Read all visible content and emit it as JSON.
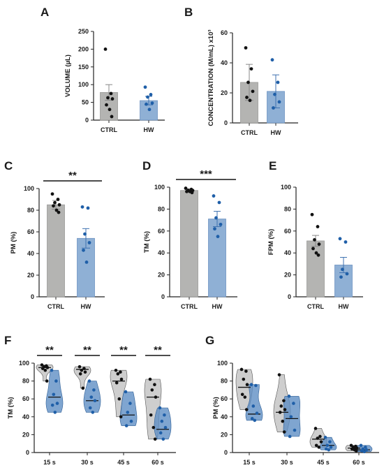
{
  "colors": {
    "ctrl": "#b4b4b2",
    "hw": "#8fb0d5",
    "ctrl_dot": "#111111",
    "hw_dot": "#1f5fa8",
    "violin_ctrl": "#bdbdbd",
    "violin_hw": "#5f8fc4"
  },
  "chart_data": [
    {
      "type": "bar",
      "panel": "A",
      "categories": [
        "CTRL",
        "HW"
      ],
      "ylabel": "VOLUME (µL)",
      "ylim": [
        0,
        250
      ],
      "yticks": [
        0,
        50,
        100,
        150,
        200,
        250
      ],
      "means": [
        78,
        55
      ],
      "errors": [
        22,
        12
      ],
      "points": [
        [
          200,
          75,
          63,
          60,
          43,
          30,
          10
        ],
        [
          93,
          72,
          65,
          48,
          45,
          30
        ]
      ]
    },
    {
      "type": "bar",
      "panel": "B",
      "categories": [
        "CTRL",
        "HW"
      ],
      "ylabel": "CONCENTRATION (M/mL) x10³",
      "ylim": [
        0,
        60
      ],
      "yticks": [
        0,
        20,
        40,
        60
      ],
      "means": [
        27,
        21
      ],
      "errors": [
        12,
        11
      ],
      "points": [
        [
          50,
          36,
          27,
          21,
          17,
          15
        ],
        [
          42,
          27,
          19,
          14,
          10
        ]
      ]
    },
    {
      "type": "bar",
      "panel": "C",
      "categories": [
        "CTRL",
        "HW"
      ],
      "ylabel": "PM (%)",
      "ylim": [
        0,
        100
      ],
      "yticks": [
        0,
        20,
        40,
        60,
        80,
        100
      ],
      "means": [
        85,
        54
      ],
      "errors": [
        4,
        9
      ],
      "points": [
        [
          95,
          90,
          87,
          85,
          84,
          80,
          78
        ],
        [
          83,
          82,
          58,
          50,
          43,
          32
        ]
      ],
      "significance": "**"
    },
    {
      "type": "bar",
      "panel": "D",
      "categories": [
        "CTRL",
        "HW"
      ],
      "ylabel": "TM (%)",
      "ylim": [
        0,
        100
      ],
      "yticks": [
        0,
        20,
        40,
        60,
        80,
        100
      ],
      "means": [
        97,
        71
      ],
      "errors": [
        1.5,
        7
      ],
      "points": [
        [
          99,
          98,
          97,
          97,
          96,
          96,
          95
        ],
        [
          92,
          86,
          72,
          66,
          62,
          55
        ]
      ],
      "significance": "***"
    },
    {
      "type": "bar",
      "panel": "E",
      "categories": [
        "CTRL",
        "HW"
      ],
      "ylabel": "FPM (%)",
      "ylim": [
        0,
        100
      ],
      "yticks": [
        0,
        20,
        40,
        60,
        80,
        100
      ],
      "means": [
        51,
        29
      ],
      "errors": [
        5,
        7
      ],
      "points": [
        [
          75,
          64,
          52,
          48,
          44,
          40,
          38
        ],
        [
          53,
          50,
          25,
          21,
          18
        ]
      ]
    },
    {
      "type": "violin",
      "panel": "F",
      "categories": [
        "15 s",
        "30 s",
        "45 s",
        "60 s"
      ],
      "ylabel": "TM (%)",
      "ylim": [
        0,
        100
      ],
      "yticks": [
        0,
        20,
        40,
        60,
        80,
        100
      ],
      "significance": [
        "**",
        "**",
        "**",
        "**"
      ],
      "groups": [
        {
          "ctrl": [
            98,
            97,
            96,
            95,
            94,
            92,
            80
          ],
          "hw": [
            92,
            80,
            65,
            55,
            53,
            45
          ]
        },
        {
          "ctrl": [
            96,
            94,
            92,
            90,
            88,
            72
          ],
          "hw": [
            80,
            70,
            62,
            58,
            50,
            45
          ]
        },
        {
          "ctrl": [
            92,
            90,
            88,
            82,
            78,
            60,
            40
          ],
          "hw": [
            68,
            55,
            45,
            35,
            30
          ]
        },
        {
          "ctrl": [
            82,
            76,
            70,
            62,
            42,
            28,
            15
          ],
          "hw": [
            50,
            42,
            35,
            28,
            22,
            15
          ]
        }
      ],
      "medians": [
        [
          95,
          62
        ],
        [
          93,
          58
        ],
        [
          80,
          42
        ],
        [
          62,
          26
        ]
      ]
    },
    {
      "type": "violin",
      "panel": "G",
      "categories": [
        "15 s",
        "30 s",
        "45 s",
        "60 s"
      ],
      "ylabel": "PM (%)",
      "ylim": [
        0,
        100
      ],
      "yticks": [
        0,
        20,
        40,
        60,
        80,
        100
      ],
      "groups": [
        {
          "ctrl": [
            93,
            91,
            82,
            76,
            65,
            62,
            48
          ],
          "hw": [
            76,
            75,
            52,
            44,
            38,
            36
          ]
        },
        {
          "ctrl": [
            87,
            58,
            52,
            48,
            45,
            35,
            23
          ],
          "hw": [
            63,
            55,
            40,
            25,
            18
          ]
        },
        {
          "ctrl": [
            27,
            18,
            16,
            12,
            8,
            6
          ],
          "hw": [
            17,
            12,
            8,
            6,
            4,
            3
          ]
        },
        {
          "ctrl": [
            8,
            7,
            6,
            5,
            4,
            3,
            2
          ],
          "hw": [
            8,
            6,
            4,
            3,
            2,
            1
          ]
        }
      ],
      "medians": [
        [
          73,
          43
        ],
        [
          45,
          38
        ],
        [
          15,
          8
        ],
        [
          5,
          3
        ]
      ]
    }
  ]
}
